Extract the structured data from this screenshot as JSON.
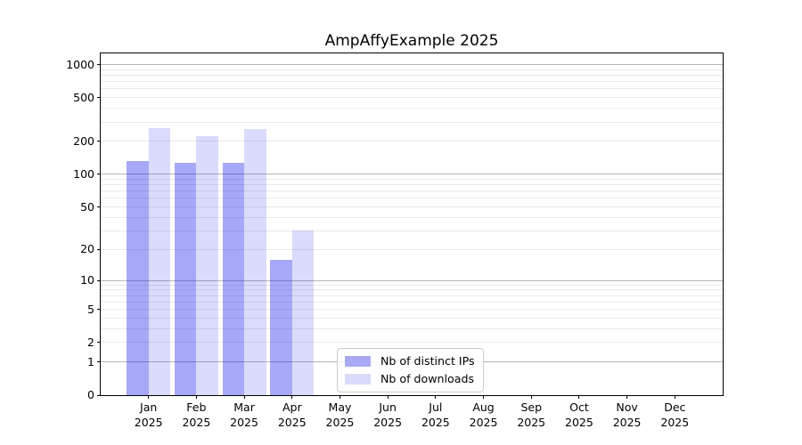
{
  "chart_data": {
    "type": "bar",
    "title": "AmpAffyExample 2025",
    "categories": [
      "Jan",
      "Feb",
      "Mar",
      "Apr",
      "May",
      "Jun",
      "Jul",
      "Aug",
      "Sep",
      "Oct",
      "Nov",
      "Dec"
    ],
    "x_tick_second_line": "2025",
    "series": [
      {
        "name": "Nb of distinct IPs",
        "color": "#a9a9f4",
        "fill": "rgba(0,0,235,0.34)",
        "values": [
          133,
          127,
          128,
          16,
          null,
          null,
          null,
          null,
          null,
          null,
          null,
          null
        ]
      },
      {
        "name": "Nb of downloads",
        "color": "#dadaf9",
        "fill": "rgba(0,0,235,0.14)",
        "values": [
          265,
          222,
          261,
          30,
          null,
          null,
          null,
          null,
          null,
          null,
          null,
          null
        ]
      }
    ],
    "y_scale": "log10(1+x)",
    "ylim": [
      0,
      1250
    ],
    "y_ticks": [
      0,
      1,
      2,
      5,
      10,
      20,
      50,
      100,
      200,
      500,
      1000
    ],
    "y_major_gridlines": [
      1,
      10,
      100,
      1000
    ],
    "grid": "horizontal minor+major",
    "legend_position": "bottom-center",
    "colors": {
      "major_grid": "#b6b6b6",
      "minor_grid": "#e9e9e9",
      "axis": "#000000",
      "background": "#ffffff"
    }
  }
}
